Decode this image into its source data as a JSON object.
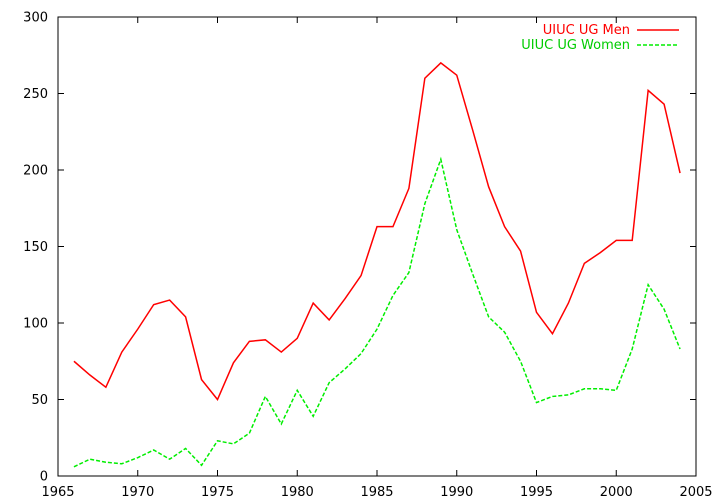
{
  "colors": {
    "men": "#ff0000",
    "women": "#00ee00",
    "axis": "#000000",
    "background": "#ffffff"
  },
  "chart_data": {
    "type": "line",
    "title": "",
    "xlabel": "",
    "ylabel": "",
    "xlim": [
      1965,
      2005
    ],
    "ylim": [
      0,
      300
    ],
    "xticks": [
      1965,
      1970,
      1975,
      1980,
      1985,
      1990,
      1995,
      2000,
      2005
    ],
    "yticks": [
      0,
      50,
      100,
      150,
      200,
      250,
      300
    ],
    "grid": false,
    "legend_position": "top-right",
    "x": [
      1966,
      1967,
      1968,
      1969,
      1970,
      1971,
      1972,
      1973,
      1974,
      1975,
      1976,
      1977,
      1978,
      1979,
      1980,
      1981,
      1982,
      1983,
      1984,
      1985,
      1986,
      1987,
      1988,
      1989,
      1990,
      1991,
      1992,
      1993,
      1994,
      1995,
      1996,
      1997,
      1998,
      1999,
      2000,
      2001,
      2002,
      2003,
      2004
    ],
    "series": [
      {
        "name": "UIUC UG Men",
        "style": "solid",
        "color": "#ff0000",
        "values": [
          75,
          66,
          58,
          81,
          96,
          112,
          115,
          104,
          63,
          50,
          74,
          88,
          89,
          81,
          90,
          113,
          102,
          116,
          131,
          163,
          163,
          188,
          260,
          270,
          262,
          226,
          189,
          163,
          147,
          107,
          93,
          113,
          139,
          146,
          154,
          154,
          252,
          243,
          198
        ]
      },
      {
        "name": "UIUC UG Women",
        "style": "dashed",
        "color": "#00ee00",
        "values": [
          6,
          11,
          9,
          8,
          12,
          17,
          11,
          18,
          7,
          23,
          21,
          28,
          52,
          34,
          56,
          39,
          61,
          70,
          80,
          96,
          118,
          133,
          178,
          207,
          161,
          132,
          104,
          94,
          75,
          48,
          52,
          53,
          57,
          57,
          56,
          83,
          125,
          109,
          83
        ]
      }
    ]
  }
}
